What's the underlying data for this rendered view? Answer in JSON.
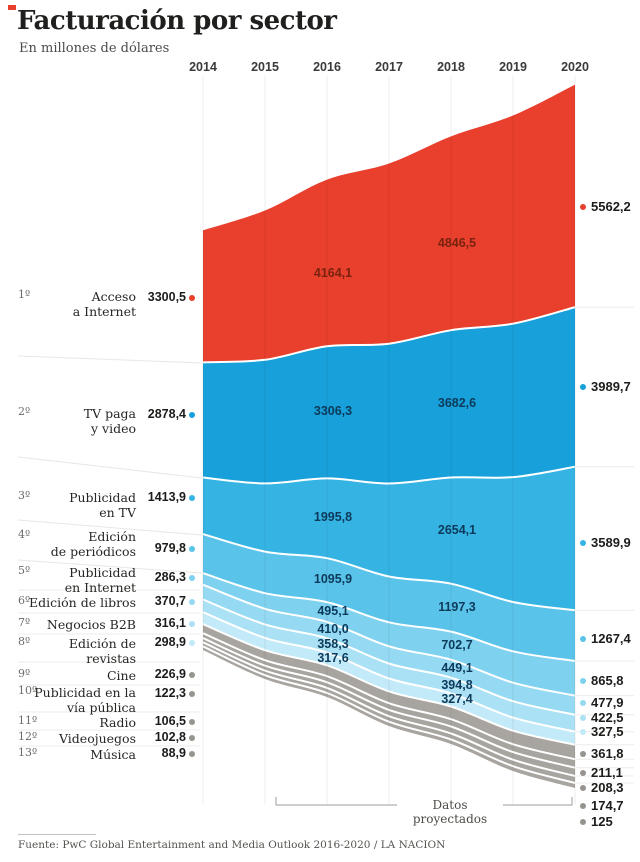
{
  "header": {
    "title": "Facturación por sector",
    "subtitle": "En millones de dólares",
    "corner_mark_color": "#e8402d"
  },
  "chart_data": {
    "type": "area",
    "stacked": true,
    "title": "Facturación por sector",
    "unit": "millones de dólares",
    "years": [
      2014,
      2015,
      2016,
      2017,
      2018,
      2019,
      2020
    ],
    "projected_years": [
      2016,
      2017,
      2018,
      2019,
      2020
    ],
    "grid": "vertical-year-lines",
    "legend_position": "left-ranked-list",
    "projection_note": "Datos proyectados",
    "source": "Fuente: PwC Global Entertainment and Media Outlook 2016-2020 / LA NACION",
    "annotation_colors": {
      "on_red": "#78220f",
      "on_blue": "#0c3a5a"
    },
    "series": [
      {
        "rank": "1º",
        "name": "Acceso a Internet",
        "label_lines": [
          "Acceso",
          "a Internet"
        ],
        "color": "#e8402d",
        "values": {
          "2014": 3300.5,
          "2016": 4164.1,
          "2018": 4846.5,
          "2020": 5562.2
        },
        "display": {
          "2014": "3300,5",
          "2016": "4164,1",
          "2018": "4846,5",
          "2020": "5562,2"
        }
      },
      {
        "rank": "2º",
        "name": "TV paga y video",
        "label_lines": [
          "TV paga",
          "y video"
        ],
        "color": "#18a0da",
        "values": {
          "2014": 2878.4,
          "2016": 3306.3,
          "2018": 3682.6,
          "2020": 3989.7
        },
        "display": {
          "2014": "2878,4",
          "2016": "3306,3",
          "2018": "3682,6",
          "2020": "3989,7"
        }
      },
      {
        "rank": "3º",
        "name": "Publicidad en TV",
        "label_lines": [
          "Publicidad",
          "en TV"
        ],
        "color": "#35b4e4",
        "values": {
          "2014": 1413.9,
          "2016": 1995.8,
          "2018": 2654.1,
          "2020": 3589.9
        },
        "display": {
          "2014": "1413,9",
          "2016": "1995,8",
          "2018": "2654,1",
          "2020": "3589,9"
        }
      },
      {
        "rank": "4º",
        "name": "Edición de periódicos",
        "label_lines": [
          "Edición",
          "de periódicos"
        ],
        "color": "#5ac3ea",
        "values": {
          "2014": 979.8,
          "2016": 1095.9,
          "2018": 1197.3,
          "2020": 1267.4
        },
        "display": {
          "2014": "979,8",
          "2016": "1095,9",
          "2018": "1197,3",
          "2020": "1267,4"
        }
      },
      {
        "rank": "5º",
        "name": "Publicidad en Internet",
        "label_lines": [
          "Publicidad",
          "en Internet"
        ],
        "color": "#7ed1ef",
        "values": {
          "2014": 286.3,
          "2016": 495.1,
          "2018": 702.7,
          "2020": 865.8
        },
        "display": {
          "2014": "286,3",
          "2016": "495,1",
          "2018": "702,7",
          "2020": "865,8"
        }
      },
      {
        "rank": "6º",
        "name": "Edición de libros",
        "label_lines": [
          "Edición de libros"
        ],
        "color": "#95daf2",
        "values": {
          "2014": 370.7,
          "2016": 410.0,
          "2018": 449.1,
          "2020": 477.9
        },
        "display": {
          "2014": "370,7",
          "2016": "410,0",
          "2018": "449,1",
          "2020": "477,9"
        }
      },
      {
        "rank": "7º",
        "name": "Negocios B2B",
        "label_lines": [
          "Negocios B2B"
        ],
        "color": "#abe1f5",
        "values": {
          "2014": 316.1,
          "2016": 358.3,
          "2018": 394.8,
          "2020": 422.5
        },
        "display": {
          "2014": "316,1",
          "2016": "358,3",
          "2018": "394,8",
          "2020": "422,5"
        }
      },
      {
        "rank": "8º",
        "name": "Edición de revistas",
        "label_lines": [
          "Edición de revistas"
        ],
        "color": "#c3eaf8",
        "values": {
          "2014": 298.9,
          "2016": 317.6,
          "2018": 327.4,
          "2020": 327.5
        },
        "display": {
          "2014": "298,9",
          "2016": "317,6",
          "2018": "327,4",
          "2020": "327,5"
        }
      },
      {
        "rank": "9º",
        "name": "Cine",
        "label_lines": [
          "Cine"
        ],
        "color": "#a8a49f",
        "dot_color": "#97938e",
        "values": {
          "2014": 226.9,
          "2020": 361.8
        },
        "display": {
          "2014": "226,9",
          "2020": "361,8"
        }
      },
      {
        "rank": "10º",
        "name": "Publicidad en la vía pública",
        "label_lines": [
          "Publicidad en la",
          "vía pública"
        ],
        "color": "#a8a49f",
        "dot_color": "#97938e",
        "values": {
          "2014": 122.3,
          "2020": 211.1
        },
        "display": {
          "2014": "122,3",
          "2020": "211,1"
        }
      },
      {
        "rank": "11º",
        "name": "Radio",
        "label_lines": [
          "Radio"
        ],
        "color": "#a8a49f",
        "dot_color": "#97938e",
        "values": {
          "2014": 106.5,
          "2020": 208.3
        },
        "display": {
          "2014": "106,5",
          "2020": "208,3"
        }
      },
      {
        "rank": "12º",
        "name": "Videojuegos",
        "label_lines": [
          "Videojuegos"
        ],
        "color": "#a8a49f",
        "dot_color": "#97938e",
        "values": {
          "2014": 102.8,
          "2020": 174.7
        },
        "display": {
          "2014": "102,8",
          "2020": "174,7"
        }
      },
      {
        "rank": "13º",
        "name": "Música",
        "label_lines": [
          "Música"
        ],
        "color": "#a8a49f",
        "dot_color": "#97938e",
        "values": {
          "2014": 88.9,
          "2020": 125
        },
        "display": {
          "2014": "88,9",
          "2020": "125"
        }
      }
    ]
  }
}
